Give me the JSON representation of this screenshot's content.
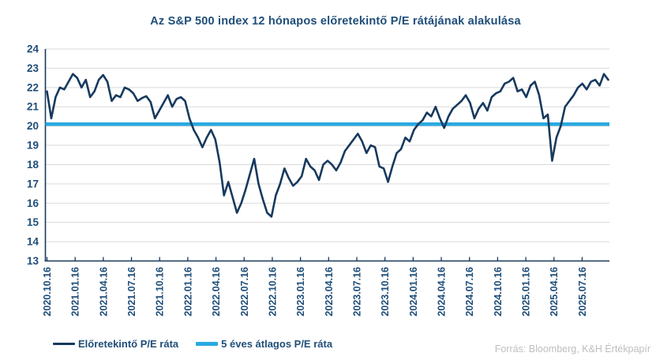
{
  "title": "Az S&P 500 index 12 hónapos előretekintő P/E rátájának alakulása",
  "source": "Forrás: Bloomberg, K&H Értékpapír",
  "legend": [
    {
      "label": "Előretekintő P/E ráta",
      "color": "#17395E"
    },
    {
      "label": "5 éves átlagos P/E ráta",
      "color": "#29A9E0"
    }
  ],
  "colors": {
    "navy_line": "#17395E",
    "blue_line": "#29A9E0",
    "axis_label": "#1F4E79",
    "grid": "#D9D9D9",
    "source_text": "#BFBFBF",
    "background": "#FFFFFF"
  },
  "chart_data": {
    "type": "line",
    "title": "Az S&P 500 index 12 hónapos előretekintő P/E rátájának alakulása",
    "xlabel": "",
    "ylabel": "",
    "ylim": [
      13,
      24
    ],
    "y_ticks": [
      13,
      14,
      15,
      16,
      17,
      18,
      19,
      20,
      21,
      22,
      23,
      24
    ],
    "grid": "horizontal",
    "legend_position": "bottom-left",
    "x_start_date": "2020.10.16",
    "x_point_interval_days": 14,
    "x_tick_labels": [
      "2020.10.16",
      "2021.01.16",
      "2021.04.16",
      "2021.07.16",
      "2021.10.16",
      "2022.01.16",
      "2022.04.16",
      "2022.07.16",
      "2022.10.16",
      "2023.01.16",
      "2023.04.16",
      "2023.07.16",
      "2023.10.16",
      "2024.01.16",
      "2024.04.16",
      "2024.07.16",
      "2024.10.16",
      "2025.01.16",
      "2025.04.16",
      "2025.07.16"
    ],
    "series": [
      {
        "name": "Előretekintő P/E ráta",
        "type": "line",
        "color": "#17395E",
        "values": [
          21.8,
          20.4,
          21.5,
          22.0,
          21.9,
          22.3,
          22.7,
          22.5,
          22.0,
          22.4,
          21.5,
          21.8,
          22.4,
          22.65,
          22.3,
          21.3,
          21.6,
          21.5,
          22.0,
          21.9,
          21.7,
          21.3,
          21.45,
          21.55,
          21.25,
          20.4,
          20.8,
          21.2,
          21.6,
          21.0,
          21.4,
          21.5,
          21.3,
          20.4,
          19.8,
          19.4,
          18.9,
          19.4,
          19.8,
          19.3,
          18.1,
          16.4,
          17.1,
          16.3,
          15.5,
          16.0,
          16.7,
          17.5,
          18.3,
          17.0,
          16.2,
          15.5,
          15.3,
          16.4,
          17.0,
          17.8,
          17.3,
          16.9,
          17.1,
          17.4,
          18.3,
          17.9,
          17.7,
          17.2,
          18.0,
          18.2,
          18.0,
          17.7,
          18.1,
          18.7,
          19.0,
          19.3,
          19.6,
          19.2,
          18.6,
          19.0,
          18.9,
          17.9,
          17.8,
          17.1,
          17.9,
          18.6,
          18.8,
          19.4,
          19.2,
          19.8,
          20.1,
          20.3,
          20.7,
          20.5,
          21.0,
          20.4,
          19.9,
          20.5,
          20.9,
          21.1,
          21.3,
          21.6,
          21.2,
          20.4,
          20.9,
          21.2,
          20.8,
          21.5,
          21.7,
          21.8,
          22.2,
          22.3,
          22.5,
          21.8,
          21.9,
          21.5,
          22.1,
          22.3,
          21.6,
          20.4,
          20.6,
          18.2,
          19.4,
          20.0,
          21.0,
          21.3,
          21.6,
          22.0,
          22.2,
          21.9,
          22.3,
          22.4,
          22.1,
          22.7,
          22.4
        ]
      },
      {
        "name": "5 éves átlagos P/E ráta",
        "type": "constant-line",
        "color": "#29A9E0",
        "value": 20.1
      }
    ]
  }
}
